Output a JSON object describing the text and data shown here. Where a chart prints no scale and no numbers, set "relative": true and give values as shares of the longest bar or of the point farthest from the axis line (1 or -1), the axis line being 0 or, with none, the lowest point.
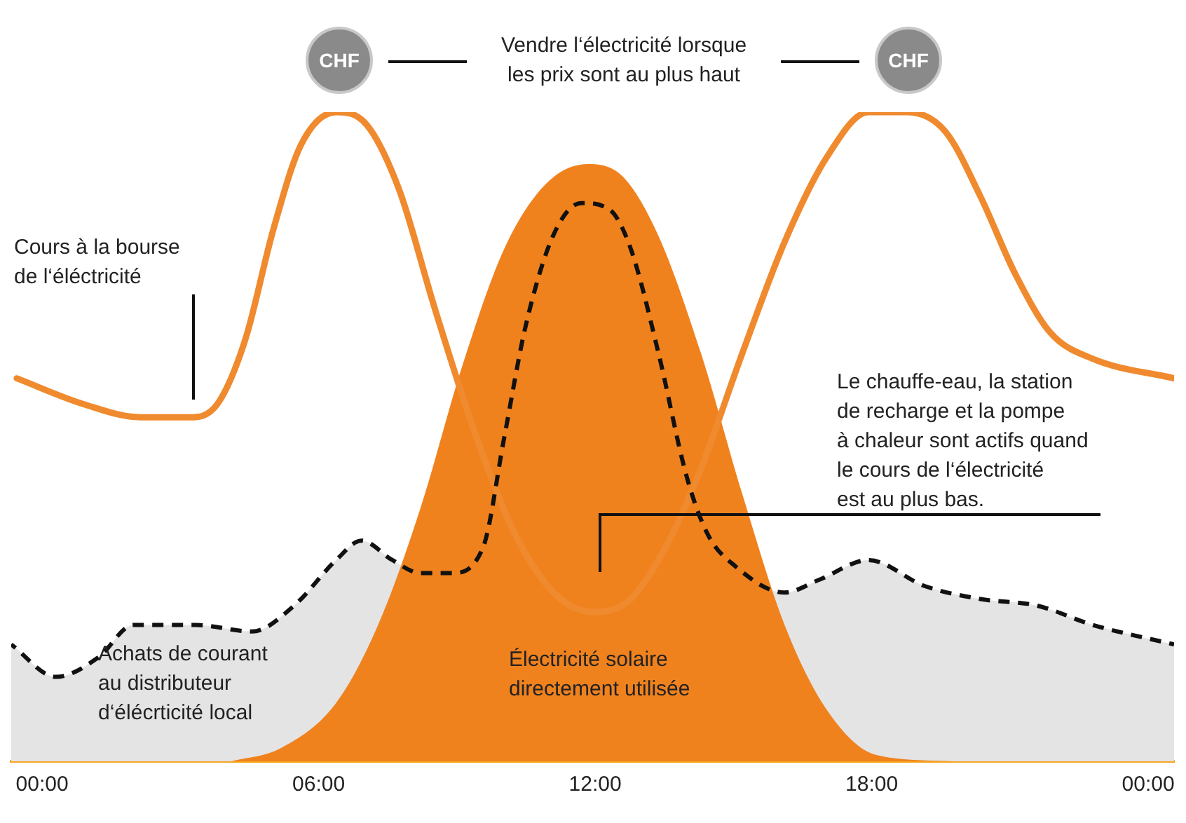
{
  "chart_data": {
    "type": "line",
    "relative": true,
    "xlim": [
      -0.67,
      24.56
    ],
    "xticks": [
      {
        "value": 0,
        "label": "00:00"
      },
      {
        "value": 6,
        "label": "06:00"
      },
      {
        "value": 12,
        "label": "12:00"
      },
      {
        "value": 18,
        "label": "18:00"
      },
      {
        "value": 24,
        "label": "00:00"
      }
    ],
    "grid": false,
    "legend": false,
    "tick_labels": "x",
    "series": [
      {
        "type": "area",
        "color": "#f0821e",
        "x": [
          4.1,
          5.17,
          6.38,
          7.29,
          8.21,
          9.12,
          10.03,
          10.94,
          11.85,
          12.61,
          13.37,
          14.29,
          15.2,
          16.11,
          17.02,
          18.09,
          19.76
        ],
        "values": [
          0,
          0.02,
          0.09,
          0.21,
          0.39,
          0.61,
          0.79,
          0.89,
          0.92,
          0.9,
          0.81,
          0.63,
          0.41,
          0.21,
          0.08,
          0.01,
          0
        ]
      },
      {
        "type": "area",
        "color": "#e4e4e4",
        "line_style": "dashed",
        "x": [
          -0.67,
          0.3,
          1.22,
          1.98,
          3.34,
          4.56,
          5.47,
          6.38,
          6.93,
          7.6,
          8.21,
          8.88,
          9.57,
          10.03,
          10.49,
          11.09,
          11.7,
          12.31,
          12.77,
          13.37,
          13.98,
          14.44,
          15.05,
          16.11,
          16.87,
          17.93,
          19.15,
          20.36,
          21.58,
          22.8,
          24.56
        ],
        "values": [
          0.18,
          0.13,
          0.16,
          0.21,
          0.21,
          0.2,
          0.24,
          0.31,
          0.34,
          0.31,
          0.29,
          0.29,
          0.33,
          0.5,
          0.67,
          0.81,
          0.86,
          0.85,
          0.79,
          0.63,
          0.44,
          0.35,
          0.3,
          0.26,
          0.28,
          0.31,
          0.27,
          0.25,
          0.24,
          0.21,
          0.18
        ]
      },
      {
        "type": "line",
        "color": "#f08a2e",
        "x": [
          -0.55,
          0.91,
          2.13,
          3.19,
          3.8,
          4.41,
          5.02,
          5.62,
          6.38,
          7.05,
          7.75,
          8.51,
          9.42,
          10.33,
          11.25,
          12.01,
          12.77,
          13.53,
          14.29,
          15.2,
          16.11,
          17.02,
          17.93,
          18.78,
          19.6,
          20.36,
          21.12,
          21.88,
          22.8,
          24.56
        ],
        "values": [
          0.59,
          0.55,
          0.53,
          0.53,
          0.55,
          0.65,
          0.82,
          0.95,
          1,
          0.98,
          0.88,
          0.7,
          0.5,
          0.34,
          0.25,
          0.23,
          0.25,
          0.33,
          0.45,
          0.63,
          0.8,
          0.93,
          1,
          1,
          0.97,
          0.87,
          0.75,
          0.66,
          0.62,
          0.59
        ]
      }
    ],
    "annotations": [
      "CHF",
      "CHF",
      "Vendre l‘électricité lorsque\nles prix sont au plus haut",
      "Cours à la bourse\nde l‘éléctricité",
      "Le chauffe-eau, la station\nde recharge et la pompe\nà chaleur sont actifs quand\nle cours de l‘électricité\nest au plus bas.",
      "Achats de courant\nau distributeur\nd‘élécrticité local",
      "Électricité solaire\ndirectement utilisée"
    ]
  }
}
